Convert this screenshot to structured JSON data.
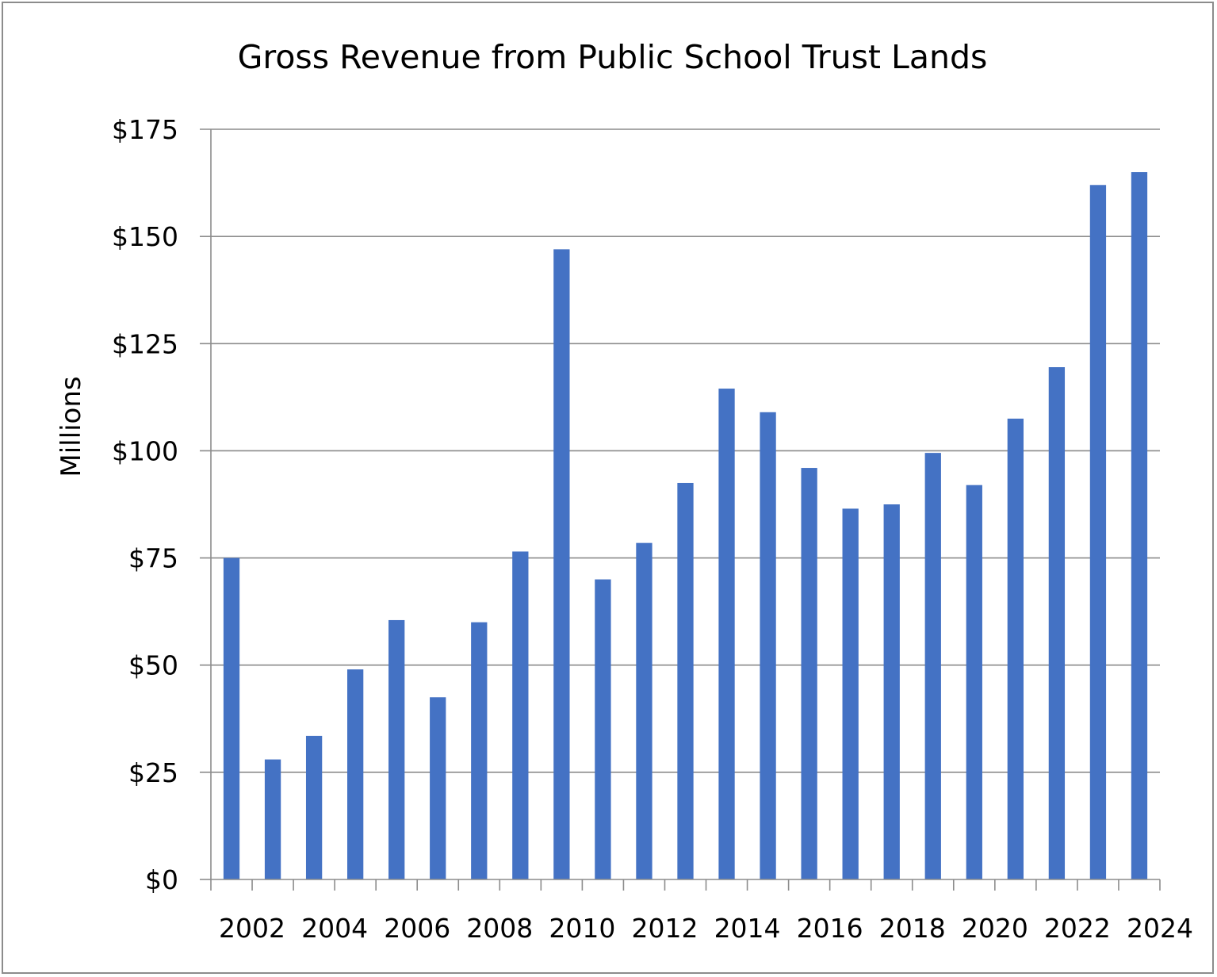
{
  "chart_data": {
    "type": "bar",
    "title": "Gross Revenue from Public School Trust Lands",
    "xlabel": "",
    "ylabel": "Millions",
    "ylim": [
      0,
      175
    ],
    "yticks": [
      0,
      25,
      50,
      75,
      100,
      125,
      150,
      175
    ],
    "ytick_labels": [
      "$0",
      "$25",
      "$50",
      "$75",
      "$100",
      "$125",
      "$150",
      "$175"
    ],
    "xtick_labels": [
      "2002",
      "2004",
      "2006",
      "2008",
      "2010",
      "2012",
      "2014",
      "2016",
      "2018",
      "2020",
      "2022",
      "2024"
    ],
    "categories": [
      "2002",
      "2003",
      "2004",
      "2005",
      "2006",
      "2007",
      "2008",
      "2009",
      "2010",
      "2011",
      "2012",
      "2013",
      "2014",
      "2015",
      "2016",
      "2017",
      "2018",
      "2019",
      "2020",
      "2021",
      "2022",
      "2023",
      "2024"
    ],
    "values": [
      75,
      28,
      33.5,
      49,
      60.5,
      42.5,
      60,
      76.5,
      147,
      70,
      78.5,
      92.5,
      114.5,
      109,
      96,
      86.5,
      87.5,
      99.5,
      92,
      107.5,
      119.5,
      162,
      165
    ],
    "bar_color": "#4472c4",
    "grid": true
  }
}
